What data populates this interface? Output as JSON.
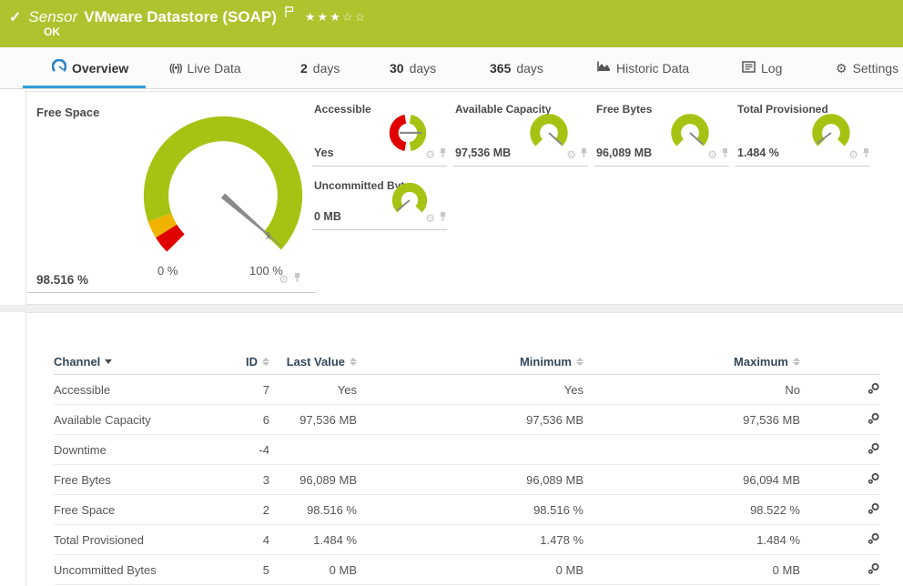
{
  "colors": {
    "ok_green": "#aec32d",
    "gauge_green": "#a6c313",
    "warn_orange": "#f0b400",
    "error_red": "#e00000",
    "accent_blue": "#2e9fd8"
  },
  "header": {
    "check": "✓",
    "type_label": "Sensor",
    "title": "VMware Datastore (SOAP)",
    "stars_filled": "★★★",
    "stars_empty": "☆☆",
    "status": "OK"
  },
  "tabs": [
    {
      "label": "Overview",
      "active": true
    },
    {
      "label": "Live Data"
    },
    {
      "num": "2",
      "label": "days"
    },
    {
      "num": "30",
      "label": "days"
    },
    {
      "num": "365",
      "label": "days"
    },
    {
      "label": "Historic Data"
    },
    {
      "label": "Log"
    },
    {
      "label": "Settings"
    }
  ],
  "icons": {
    "gear": "⚙",
    "live_data": "((•))"
  },
  "gauges": {
    "free_space": {
      "title": "Free Space",
      "value": "98.516 %",
      "min_label": "0 %",
      "max_label": "100 %",
      "needle_angle": 41,
      "mean_marker": "x̄"
    },
    "tiles": [
      {
        "title": "Accessible",
        "value": "Yes",
        "needle_angle": 0
      },
      {
        "title": "Available Capacity",
        "value": "97,536 MB",
        "needle_angle": 42
      },
      {
        "title": "Free Bytes",
        "value": "96,089 MB",
        "needle_angle": 42
      },
      {
        "title": "Total Provisioned",
        "value": "1.484 %",
        "needle_angle": 143
      },
      {
        "title": "Uncommitted Bytes",
        "value": "0 MB",
        "needle_angle": 140
      }
    ]
  },
  "table": {
    "columns": {
      "channel": "Channel",
      "id": "ID",
      "last": "Last Value",
      "min": "Minimum",
      "max": "Maximum"
    },
    "rows": [
      {
        "channel": "Accessible",
        "id": "7",
        "last": "Yes",
        "min": "Yes",
        "max": "No"
      },
      {
        "channel": "Available Capacity",
        "id": "6",
        "last": "97,536 MB",
        "min": "97,536 MB",
        "max": "97,536 MB"
      },
      {
        "channel": "Downtime",
        "id": "-4",
        "last": "",
        "min": "",
        "max": ""
      },
      {
        "channel": "Free Bytes",
        "id": "3",
        "last": "96,089 MB",
        "min": "96,089 MB",
        "max": "96,094 MB"
      },
      {
        "channel": "Free Space",
        "id": "2",
        "last": "98.516 %",
        "min": "98.516 %",
        "max": "98.522 %"
      },
      {
        "channel": "Total Provisioned",
        "id": "4",
        "last": "1.484 %",
        "min": "1.478 %",
        "max": "1.484 %"
      },
      {
        "channel": "Uncommitted Bytes",
        "id": "5",
        "last": "0 MB",
        "min": "0 MB",
        "max": "0 MB"
      }
    ]
  }
}
